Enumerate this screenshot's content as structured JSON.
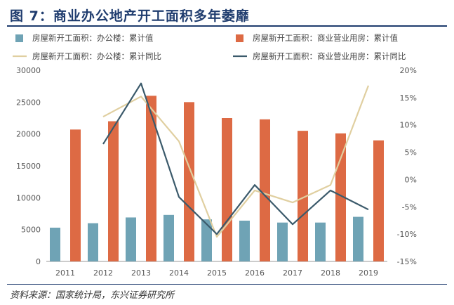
{
  "title": "图 7：商业办公地产开工面积多年萎靡",
  "source": "资料来源：国家统计局，东兴证券研究所",
  "chart_data": {
    "type": "bar",
    "categories": [
      "2011",
      "2012",
      "2013",
      "2014",
      "2015",
      "2016",
      "2017",
      "2018",
      "2019"
    ],
    "series": [
      {
        "name": "房屋新开工面积：办公楼：累计值",
        "type": "bar",
        "axis": "left",
        "color": "#6fa3b5",
        "values": [
          5300,
          6000,
          6900,
          7300,
          6600,
          6400,
          6100,
          6100,
          7000
        ]
      },
      {
        "name": "房屋新开工面积：商业营业用房：累计值",
        "type": "bar",
        "axis": "left",
        "color": "#dd6a44",
        "values": [
          20700,
          22000,
          26000,
          25000,
          22500,
          22300,
          20500,
          20100,
          19000
        ]
      },
      {
        "name": "房屋新开工面积：办公楼：累计同比",
        "type": "line",
        "axis": "right",
        "color": "#e0cfa0",
        "values": [
          null,
          11.5,
          15.2,
          7.0,
          -10.5,
          -2.0,
          -4.2,
          -1.0,
          17.2
        ]
      },
      {
        "name": "房屋新开工面积：商业营业用房：累计同比",
        "type": "line",
        "axis": "right",
        "color": "#3b5a6b",
        "values": [
          null,
          6.5,
          17.6,
          -3.2,
          -10.0,
          -1.0,
          -8.2,
          -2.0,
          -5.5
        ]
      }
    ],
    "y_left": {
      "min": 0,
      "max": 30000,
      "ticks": [
        "0",
        "5000",
        "10000",
        "15000",
        "20000",
        "25000",
        "30000"
      ]
    },
    "y_right": {
      "min": -15,
      "max": 20,
      "ticks": [
        "-15%",
        "-10%",
        "-5%",
        "0%",
        "5%",
        "10%",
        "15%",
        "20%"
      ]
    },
    "legend_position": "top",
    "grid": false
  }
}
